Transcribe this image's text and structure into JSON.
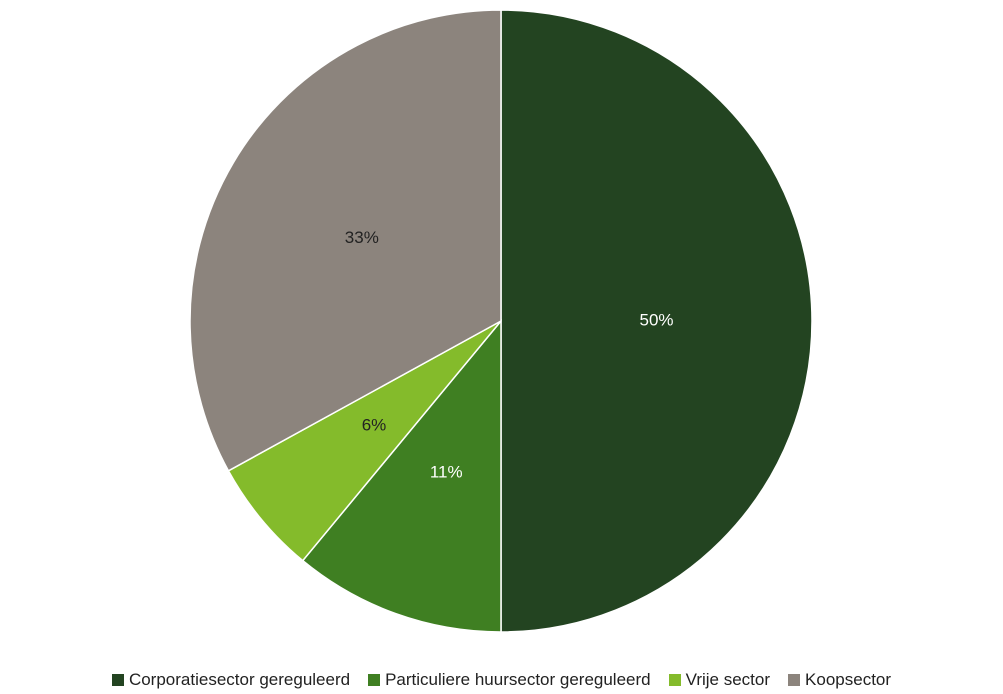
{
  "chart_data": {
    "type": "pie",
    "title": "",
    "start_angle_deg": 0,
    "direction": "clockwise",
    "slices": [
      {
        "name": "Corporatiesector gereguleerd",
        "value": 50,
        "label": "50%",
        "color": "#234421",
        "label_color": "#ffffff"
      },
      {
        "name": "Particuliere huursector gereguleerd",
        "value": 11,
        "label": "11%",
        "color": "#3f7f22",
        "label_color": "#ffffff"
      },
      {
        "name": "Vrije sector",
        "value": 6,
        "label": "6%",
        "color": "#84bb2b",
        "label_color": "#222222"
      },
      {
        "name": "Koopsector",
        "value": 33,
        "label": "33%",
        "color": "#8c847d",
        "label_color": "#222222"
      }
    ],
    "legend_position": "bottom"
  }
}
